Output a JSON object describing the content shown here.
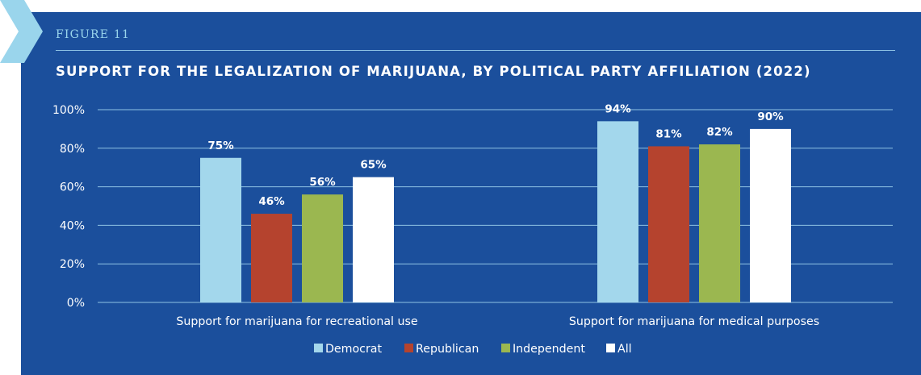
{
  "figure_label": "FIGURE 11",
  "chart_data": {
    "type": "bar",
    "title": "SUPPORT FOR THE LEGALIZATION OF MARIJUANA, BY POLITICAL PARTY AFFILIATION (2022)",
    "categories": [
      "Support for marijuana for recreational use",
      "Support for marijuana for medical purposes"
    ],
    "series": [
      {
        "name": "Democrat",
        "values": [
          75,
          94
        ],
        "labels": [
          "75%",
          "94%"
        ],
        "color": "#a3d7ec"
      },
      {
        "name": "Republican",
        "values": [
          46,
          81
        ],
        "labels": [
          "46%",
          "81%"
        ],
        "color": "#b5432e"
      },
      {
        "name": "Independent",
        "values": [
          56,
          82
        ],
        "labels": [
          "56%",
          "82%"
        ],
        "color": "#9bb750"
      },
      {
        "name": "All",
        "values": [
          65,
          90
        ],
        "labels": [
          "65%",
          "90%"
        ],
        "color": "#ffffff"
      }
    ],
    "yticks": [
      0,
      20,
      40,
      60,
      80,
      100
    ],
    "ytick_labels": [
      "0%",
      "20%",
      "40%",
      "60%",
      "80%",
      "100%"
    ],
    "ylim": [
      0,
      100
    ],
    "grid": true,
    "legend": "bottom-center"
  },
  "colors": {
    "background": "#1b4f9c",
    "gridline": "#8fc3e4",
    "chevron": "#9ad5ec",
    "text": "#ffffff"
  }
}
